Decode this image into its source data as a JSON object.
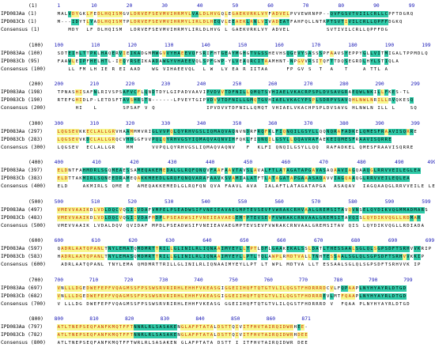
{
  "blocks": [
    {
      "range": "(1)",
      "ticks": [
        "1",
        "10",
        "20",
        "30",
        "40",
        "50",
        "60",
        "70",
        "80",
        "90",
        "99"
      ],
      "seqA": {
        "label": "IPD083Aa",
        "start": "(1)",
        "text": "MALVDYGKLFEDLHQISMGVLDRVEFSEVMVIHRMYLVALDLHVGQLEGAEKVRKLVYFADVELPVVEWRNPP--QVFGSVTVIILCRLLCPFTDGRQ"
      },
      "seqB": {
        "label": "IPD083Cb",
        "start": "(1)",
        "text": "M---IDYTLYADLHQISMTPLDRVEFSEVMVIHRMYLIRLDLHEQVLEEAEKLRNLVIVADEATFAHFQLLNTRPTSVTIVILCRLLQPFFDGKQ"
      },
      "cons": {
        "label": "Consensus",
        "start": "(1)",
        "text": "   MDY  LF DLHQISM  LDRVEFSEVMVIHRMYLIRLDLHVG L GAEKVRKLVY ADVEL          SVTIVILCRLLQPFFDG  "
      }
    },
    {
      "range": "(100)",
      "ticks": [
        "100",
        "110",
        "120",
        "130",
        "140",
        "150",
        "160",
        "170",
        "180",
        "190",
        "199"
      ],
      "seqA": {
        "label": "IPD083Aa",
        "start": "(100)",
        "text": "SDTEIHLTTPKLHAQERVIEIKADGMMWGVVYHAEEVQFSRIFHTGEAYMGHGTVGSSHEVHSQGEVYSASSSPFAAVSYEPPYGLLVITMIGALTPPMDLQ"
      },
      "seqB": {
        "label": "IPD083Cb",
        "start": "(95)",
        "text": "FAAWLEIPFHELHTL-IEQYRSEIKAADAWGYVHAEEVQLSPFGWP-YLVEAQRCITAAMHNT-NPGVVRSITQFTTDQSEGRDLHYLSTIQLA"
      },
      "cons": {
        "label": "Consensus",
        "start": "(100)",
        "text": "   LL FM LH IE R EI AAD   WG VIHAEEVQL  L W  LV EA R IITAA     FP GV S  T  A   T    A TTL A"
      }
    },
    {
      "range": "(200)",
      "ticks": [
        "200",
        "210",
        "220",
        "230",
        "240",
        "250",
        "260",
        "270",
        "280",
        "290",
        "299"
      ],
      "seqA": {
        "label": "IPD083Aa",
        "start": "(198)",
        "text": "TPNASHISAFNLRIVSPSAFVCFLQNDTDYLGIPADVAAVIPVDVVTDFNILLQMQTSVHIAELVKACRPSPLDVSAVGRAEQWLNKILLFKES-TL"
      },
      "seqB": {
        "label": "IPD083Cb",
        "start": "(190)",
        "text": "RTEFGHIDLP-LETDSFTAVSHRSTN------LPVEYTGIPVDVVTDFNILLGMQTGVHIAELVKACYPSPLSDRPVSAVQHLNWLNRILLRVQKESQ"
      },
      "cons": {
        "label": "Consensus",
        "start": "(200)",
        "text": "     HI   L       SPSAF V Q              IPVDVVTDFNILLQMQT VHIAELVKACHPSPLDVSAVG HLNWLN ILL L    SQ"
      }
    },
    {
      "range": "(300)",
      "ticks": [
        "300",
        "310",
        "320",
        "330",
        "340",
        "350",
        "360",
        "370",
        "380",
        "390",
        "399"
      ],
      "seqA": {
        "label": "IPD083Aa",
        "start": "(297)",
        "text": "LQGSEVKKECLALLGRVHAAMMMVRIGLVVPQLQYRHVGSLIQMAQVAQNVNDRFRQFKLFIQNQILGSYLLQQNQRAFADKELQMESFRAAVISQRRE"
      },
      "seqB": {
        "label": "IPD083Cb",
        "start": "(283)",
        "text": "LQGSEVVKDCLALLGRQCVHHGGFVVPQLQYRHVGSYIQMAQVAQNVIHFQKLFIQNQILGSYLLQQAVRAFAEKEIQMESFRAAVISQRRE"
      },
      "cons": {
        "label": "Consensus",
        "start": "(300)",
        "text": "LQGSEV  ECLALLGR   MM     VVPQLQYRHVGSLIQMAQVAQNV   F  KLFI QNQILGSYLLQQ  RAFADKEL QMESFRAAVISQRRE"
      }
    },
    {
      "range": "(400)",
      "ticks": [
        "400",
        "410",
        "420",
        "430",
        "440",
        "450",
        "460",
        "470",
        "480",
        "490",
        "499"
      ],
      "seqA": {
        "label": "IPD083Aa",
        "start": "(397)",
        "text": "ELDNTFAHMDRLSGQMEAESSAMEQAKEMEDALGLRQFQNQVFAAFAAVTAVSLAVALFTLATAGATAPGAVASAQAAVIAGQAAQGLRRVVEILEGLEA"
      },
      "seqB": {
        "label": "IPD083Cb",
        "start": "(383)",
        "text": "ELDTTAKMIRLSQNEEDRAMEQAKKMEEDLGRQFQNQVARAFAAVKSVAMIALATFTLATAGATAPGAAASAQAVVIAGQAAQGLRRVVEILEQLEA"
      },
      "cons": {
        "label": "Consensus",
        "start": "(400)",
        "text": "ELD    AKMIRLS QME E  AMEQAKKEMEDLGLRQFQN QVA FAAVL AVA  IALAFTLATAGATAPGA  ASAQAV  IAGQAAQGLRRVVEILE LEA"
      }
    },
    {
      "range": "(500)",
      "ticks": [
        "500",
        "510",
        "520",
        "530",
        "540",
        "550",
        "560",
        "570",
        "580",
        "590",
        "599"
      ],
      "seqA": {
        "label": "IPD083Aa",
        "start": "(497)",
        "text": "VMEVVAAIKDLVDLDQCVQGIIVDAFVMPELPSEADWSIFVNEIEAVAEGMPTEVSEVFVWRAKCRHVAALGREMSITAVQVNSELQYDIKVQGMMADMARS"
      },
      "seqB": {
        "label": "IPD083Cb",
        "start": "(483)",
        "text": "VMEVVAAIKDLVDLDQCVQGIIVDAFMDPLPSEADWSIFVNEIEAVAEGEMTPTEVSEVFVWRAKCRNVAALGREMSITAVQISLQYDIKVQGLLRDMAR"
      },
      "cons": {
        "label": "Consensus",
        "start": "(500)",
        "text": "VMEVVAAIK LVDALDQV QVIDAF MPDLPSEADWSIFVNEIEAVAEGMPTEVSEVFVWRAKCRNVAALGREMSITAV QIS LQYDIKVQGLLRDIADA"
      }
    },
    {
      "range": "(600)",
      "ticks": [
        "600",
        "610",
        "620",
        "630",
        "640",
        "650",
        "660",
        "670",
        "680",
        "690",
        "699"
      ],
      "seqA": {
        "label": "IPD083Aa",
        "start": "(597)",
        "text": "QADRLAATQPANLTNYLEMATQMDMRTTRILLGLINILRLIQNAAIMYEYLLTPTLDFLGAAKEKALSSLDATLTHESSAALSGLQLSGPSDFTSRHVVKRIP"
      },
      "seqB": {
        "label": "IPD083Cb",
        "start": "(583)",
        "text": "HADRLAATQPANLTNYLEMASQMDMRTTRILLGLINILRLIQNAAIMYEYLLPTLTQLAWPLRMDTVALLTNHTESSAALSGLQLSGPSDFTSRHVVKKIP"
      },
      "cons": {
        "label": "Consensus",
        "start": "(600)",
        "text": " ADRLAATQPANL TNYLEMA QMDMRTTRILLGLINILRLIQNAAIMYEYLLPT LT WPL MDTVA LLT ESSAALSGLQLSGPSDFTSRHVVK IP"
      }
    },
    {
      "range": "(700)",
      "ticks": [
        "700",
        "710",
        "720",
        "730",
        "740",
        "750",
        "760",
        "770",
        "780",
        "790",
        "799"
      ],
      "seqA": {
        "label": "IPD083Aa",
        "start": "(697)",
        "text": "VNLLLDGEDWEFEPFVQAGMSSFPSSWSRVRIRHLEHHFVKEASGIGGEIIHQFTQTGTVLILQGSTFHDRRRDCVLFQPAAPLNYHYAYRLDTGD"
      },
      "seqB": {
        "label": "IPD083Cb",
        "start": "(682)",
        "text": "VNLLLDGEDWEFEPFVQAGMSSFPSSWSRVRIRHLEHHFVKEASGIGGEIIHQFTQTGTVLILQGSTFHDRRREVLMTFQAAPLNYHYAYRLDTGD"
      },
      "cons": {
        "label": "Consensus",
        "start": "(700)",
        "text": "V LLLDG DWEFEPFVQAGMSSFPSSWSRVRIRHLEHHFVKEASG GGEIIHQFTQTGTVLILQGSTFHDRRRD V  FQAA PLNYHYAYRLDTGD"
      }
    },
    {
      "range": "(800)",
      "ticks": [
        "800",
        "810",
        "820",
        "830",
        "840",
        "850",
        "860",
        "871"
      ],
      "seqA": {
        "label": "IPD083Aa",
        "start": "(797)",
        "text": "ATLTNEPSEQFANFKMQTFFTNNRLRLSASAKENGLAFPTATALDSTTQIVITFHVTAIRQIDWRHEE-"
      },
      "seqB": {
        "label": "IPD083Cb",
        "start": "(782)",
        "text": "ATLTNEPSEQFANFKMQTFFTNNRLRLSASAKENGLAFPTATALDSTTQIVITFHVTAIRQIDWRHDEE"
      },
      "cons": {
        "label": "Consensus",
        "start": "(800)",
        "text": "ATLTNEPSEQFANFKMQTFFTWRLRLSASAKEN GLAFPTATA DSTT I ITFHVTAIRQIDWR DEE"
      }
    }
  ],
  "colors": {
    "identical_bg": "#f7f78c",
    "identical_fg": "#cc2a00",
    "similar_bg": "#2ec9a7",
    "ruler_fg": "#1717b5"
  }
}
